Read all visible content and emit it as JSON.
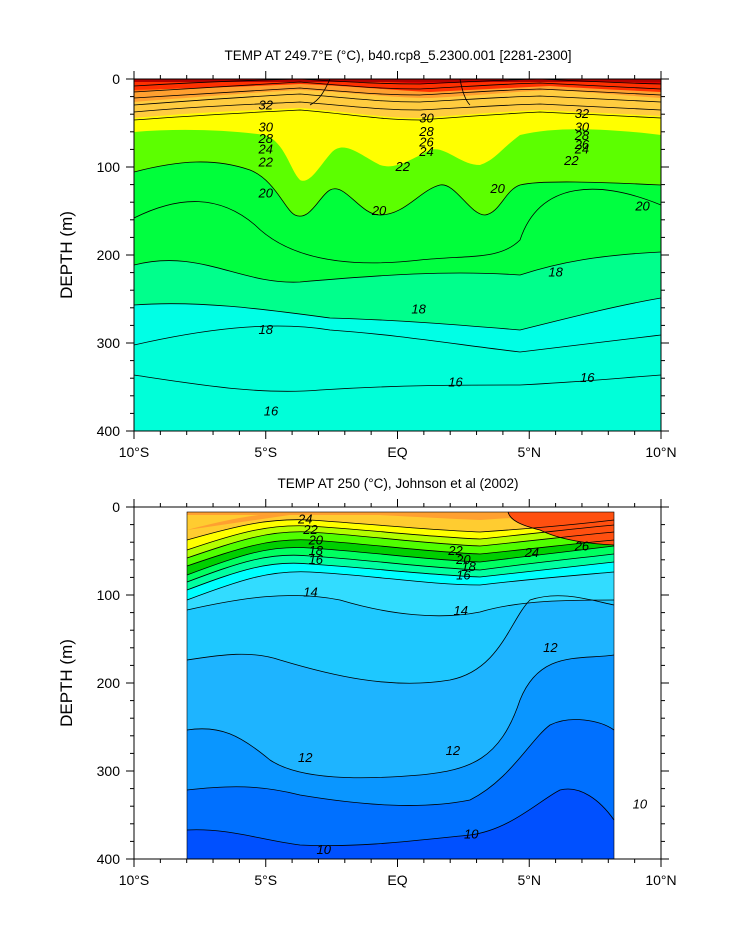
{
  "chart_data": [
    {
      "type": "contour",
      "title": "TEMP AT 249.7°E (°C), b40.rcp8_5.2300.001 [2281-2300]",
      "ylabel": "DEPTH (m)",
      "xlabel": "",
      "xlim": [
        -10,
        10
      ],
      "ylim": [
        400,
        0
      ],
      "x_ticks": [
        -10,
        -5,
        0,
        5,
        10
      ],
      "x_tick_labels": [
        "10°S",
        "5°S",
        "EQ",
        "5°N",
        "10°N"
      ],
      "y_ticks": [
        0,
        100,
        200,
        300,
        400
      ],
      "y_tick_labels": [
        "0",
        "100",
        "200",
        "300",
        "400"
      ],
      "data_x_range": [
        -10,
        10
      ],
      "units": "°C",
      "levels": [
        16,
        18,
        20,
        22,
        24,
        26,
        28,
        30,
        32
      ],
      "level_colors": {
        "below_16": "#00ffd9",
        "16_17": "#00ffe6",
        "17_18": "#00ff8c",
        "18_19": "#00ff40",
        "19_20": "#5cff00",
        "20_22": "#ffff00",
        "22_24": "#ffcc40",
        "24_26": "#ffa030",
        "26_28": "#ff7010",
        "28_30": "#ff3000",
        "30_32": "#e00000",
        "above_32": "#b30000"
      },
      "contour_labels": [
        {
          "text": "32",
          "lat": -5,
          "depth": 30
        },
        {
          "text": "30",
          "lat": -5,
          "depth": 55
        },
        {
          "text": "28",
          "lat": -5,
          "depth": 68
        },
        {
          "text": "24",
          "lat": -5,
          "depth": 80
        },
        {
          "text": "22",
          "lat": -5,
          "depth": 95
        },
        {
          "text": "20",
          "lat": -5,
          "depth": 130
        },
        {
          "text": "30",
          "lat": 1.1,
          "depth": 45
        },
        {
          "text": "28",
          "lat": 1.1,
          "depth": 60
        },
        {
          "text": "26",
          "lat": 1.1,
          "depth": 72
        },
        {
          "text": "24",
          "lat": 1.1,
          "depth": 83
        },
        {
          "text": "22",
          "lat": 0.2,
          "depth": 100
        },
        {
          "text": "20",
          "lat": -0.7,
          "depth": 150
        },
        {
          "text": "20",
          "lat": 3.8,
          "depth": 125
        },
        {
          "text": "32",
          "lat": 7,
          "depth": 40
        },
        {
          "text": "30",
          "lat": 7,
          "depth": 55
        },
        {
          "text": "28",
          "lat": 7,
          "depth": 65
        },
        {
          "text": "26",
          "lat": 7,
          "depth": 75
        },
        {
          "text": "24",
          "lat": 7,
          "depth": 80
        },
        {
          "text": "22",
          "lat": 6.6,
          "depth": 93
        },
        {
          "text": "20",
          "lat": 9.3,
          "depth": 145
        },
        {
          "text": "18",
          "lat": 6,
          "depth": 220
        },
        {
          "text": "18",
          "lat": 0.8,
          "depth": 262
        },
        {
          "text": "18",
          "lat": -5,
          "depth": 285
        },
        {
          "text": "16",
          "lat": 2.2,
          "depth": 345
        },
        {
          "text": "16",
          "lat": 7.2,
          "depth": 340
        },
        {
          "text": "16",
          "lat": -4.8,
          "depth": 378
        }
      ]
    },
    {
      "type": "contour",
      "title": "TEMP AT 250 (°C), Johnson et al (2002)",
      "ylabel": "DEPTH (m)",
      "xlabel": "",
      "xlim": [
        -10,
        10
      ],
      "ylim": [
        400,
        0
      ],
      "x_ticks": [
        -10,
        -5,
        0,
        5,
        10
      ],
      "x_tick_labels": [
        "10°S",
        "5°S",
        "EQ",
        "5°N",
        "10°N"
      ],
      "y_ticks": [
        0,
        100,
        200,
        300,
        400
      ],
      "y_tick_labels": [
        "0",
        "100",
        "200",
        "300",
        "400"
      ],
      "data_x_range": [
        -8,
        8.2
      ],
      "units": "°C",
      "levels": [
        10,
        11,
        12,
        13,
        14,
        15,
        16,
        17,
        18,
        19,
        20,
        21,
        22,
        23,
        24,
        25,
        26
      ],
      "level_colors": {
        "below_10": "#0050ff",
        "10_11": "#0070ff",
        "11_12": "#0a96ff",
        "12_13": "#1eb4ff",
        "13_14": "#1ec8ff",
        "14_15": "#32dcff",
        "15_16": "#00ffff",
        "16_17": "#00ffa0",
        "17_18": "#00ff60",
        "18_19": "#00d000",
        "19_20": "#50ff00",
        "20_21": "#b4ff00",
        "21_22": "#ffff00",
        "22_24": "#ffcc30",
        "24_26": "#ffa030",
        "above_26": "#ff5010"
      },
      "contour_labels": [
        {
          "text": "24",
          "lat": -3.5,
          "depth": 14
        },
        {
          "text": "22",
          "lat": -3.3,
          "depth": 26
        },
        {
          "text": "20",
          "lat": -3.1,
          "depth": 38
        },
        {
          "text": "18",
          "lat": -3.1,
          "depth": 50
        },
        {
          "text": "16",
          "lat": -3.1,
          "depth": 60
        },
        {
          "text": "22",
          "lat": 2.2,
          "depth": 50
        },
        {
          "text": "20",
          "lat": 2.5,
          "depth": 60
        },
        {
          "text": "18",
          "lat": 2.7,
          "depth": 68
        },
        {
          "text": "16",
          "lat": 2.5,
          "depth": 78
        },
        {
          "text": "24",
          "lat": 5.1,
          "depth": 52
        },
        {
          "text": "26",
          "lat": 7,
          "depth": 45
        },
        {
          "text": "14",
          "lat": -3.3,
          "depth": 97
        },
        {
          "text": "14",
          "lat": 2.4,
          "depth": 118
        },
        {
          "text": "12",
          "lat": 5.8,
          "depth": 160
        },
        {
          "text": "12",
          "lat": 2.1,
          "depth": 277
        },
        {
          "text": "12",
          "lat": -3.5,
          "depth": 285
        },
        {
          "text": "10",
          "lat": 2.8,
          "depth": 372
        },
        {
          "text": "10",
          "lat": -2.8,
          "depth": 390
        },
        {
          "text": "10",
          "lat": 9.2,
          "depth": 338
        }
      ]
    }
  ]
}
